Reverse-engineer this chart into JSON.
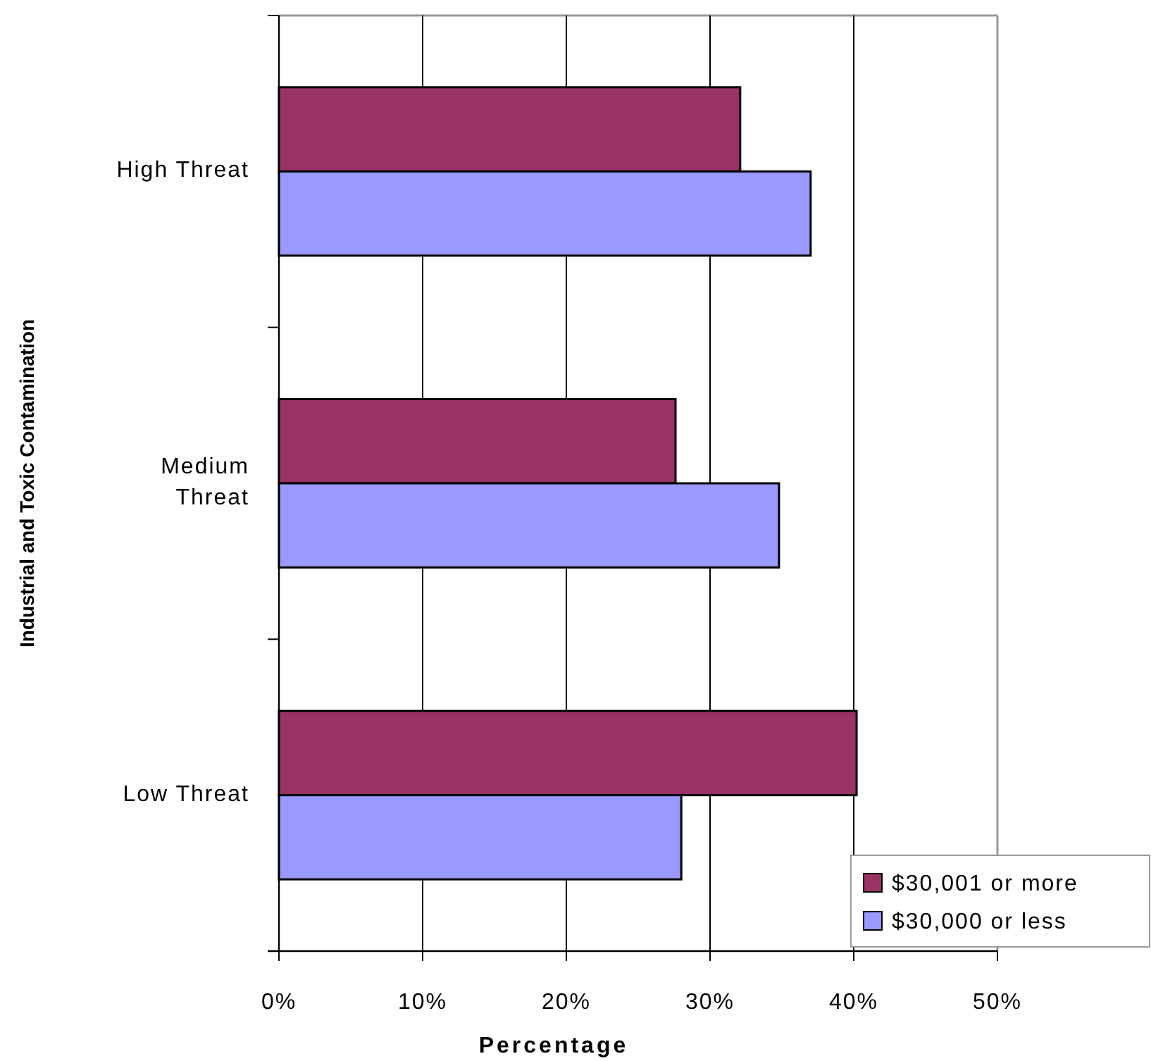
{
  "chart_data": {
    "type": "bar",
    "orientation": "horizontal",
    "ylabel": "Industrial and Toxic Contamination",
    "xlabel": "Percentage",
    "categories": [
      "High Threat",
      "Medium Threat",
      "Low Threat"
    ],
    "series": [
      {
        "name": "$30,001 or more",
        "color": "#993366",
        "values": [
          32.1,
          27.6,
          40.2
        ]
      },
      {
        "name": "$30,000 or less",
        "color": "#9999ff",
        "values": [
          37.0,
          34.8,
          28.0
        ]
      }
    ],
    "xlim": [
      0,
      50
    ],
    "xticks": [
      {
        "value": 0,
        "label": "0%"
      },
      {
        "value": 10,
        "label": "10%"
      },
      {
        "value": 20,
        "label": "20%"
      },
      {
        "value": 30,
        "label": "30%"
      },
      {
        "value": 40,
        "label": "40%"
      },
      {
        "value": 50,
        "label": "50%"
      }
    ],
    "grid": "x",
    "legend": "bottom right"
  }
}
